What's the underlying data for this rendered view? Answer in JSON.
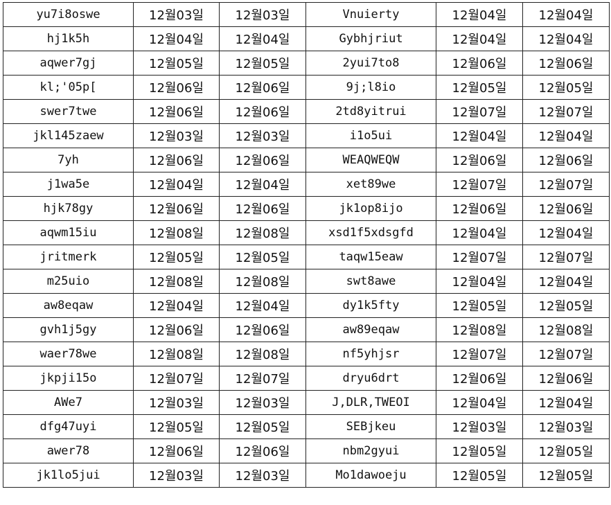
{
  "rows": [
    [
      "yu7i8oswe",
      "12월03일",
      "12월03일",
      "Vnuierty",
      "12월04일",
      "12월04일"
    ],
    [
      "hj1k5h",
      "12월04일",
      "12월04일",
      "Gybhjriut",
      "12월04일",
      "12월04일"
    ],
    [
      "aqwer7gj",
      "12월05일",
      "12월05일",
      "2yui7to8",
      "12월06일",
      "12월06일"
    ],
    [
      "kl;'05p[",
      "12월06일",
      "12월06일",
      "9j;l8io",
      "12월05일",
      "12월05일"
    ],
    [
      "swer7twe",
      "12월06일",
      "12월06일",
      "2td8yitrui",
      "12월07일",
      "12월07일"
    ],
    [
      "jkl145zaew",
      "12월03일",
      "12월03일",
      "i1o5ui",
      "12월04일",
      "12월04일"
    ],
    [
      "7yh",
      "12월06일",
      "12월06일",
      "WEAQWEQW",
      "12월06일",
      "12월06일"
    ],
    [
      "j1wa5e",
      "12월04일",
      "12월04일",
      "xet89we",
      "12월07일",
      "12월07일"
    ],
    [
      "hjk78gy",
      "12월06일",
      "12월06일",
      "jk1op8ijo",
      "12월06일",
      "12월06일"
    ],
    [
      "aqwm15iu",
      "12월08일",
      "12월08일",
      "xsd1f5xdsgfd",
      "12월04일",
      "12월04일"
    ],
    [
      "jritmerk",
      "12월05일",
      "12월05일",
      "taqw15eaw",
      "12월07일",
      "12월07일"
    ],
    [
      "m25uio",
      "12월08일",
      "12월08일",
      "swt8awe",
      "12월04일",
      "12월04일"
    ],
    [
      "aw8eqaw",
      "12월04일",
      "12월04일",
      "dy1k5fty",
      "12월05일",
      "12월05일"
    ],
    [
      "gvh1j5gy",
      "12월06일",
      "12월06일",
      "aw89eqaw",
      "12월08일",
      "12월08일"
    ],
    [
      "waer78we",
      "12월08일",
      "12월08일",
      "nf5yhjsr",
      "12월07일",
      "12월07일"
    ],
    [
      "jkpji15o",
      "12월07일",
      "12월07일",
      "dryu6drt",
      "12월06일",
      "12월06일"
    ],
    [
      "AWe7",
      "12월03일",
      "12월03일",
      "J,DLR,TWEOI",
      "12월04일",
      "12월04일"
    ],
    [
      "dfg47uyi",
      "12월05일",
      "12월05일",
      "SEBjkeu",
      "12월03일",
      "12월03일"
    ],
    [
      "awer78",
      "12월06일",
      "12월06일",
      "nbm2gyui",
      "12월05일",
      "12월05일"
    ],
    [
      "jk1lo5jui",
      "12월03일",
      "12월03일",
      "Mo1dawoeju",
      "12월05일",
      "12월05일"
    ]
  ]
}
